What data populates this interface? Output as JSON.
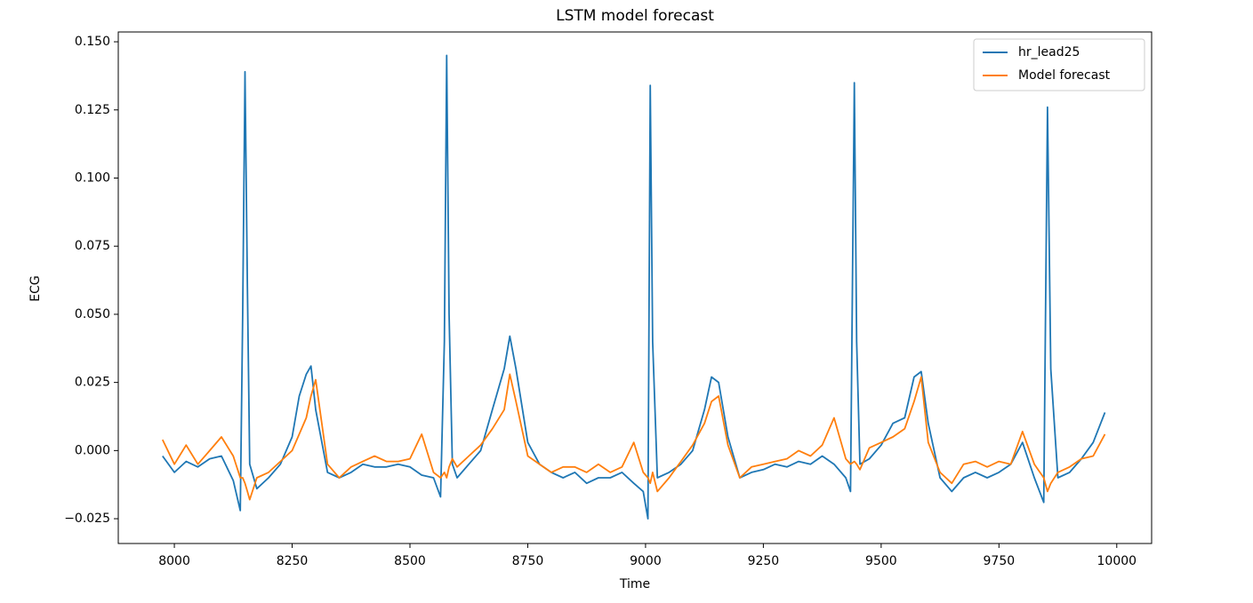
{
  "chart_data": {
    "type": "line",
    "title": "LSTM model forecast",
    "x_label": "Time",
    "y_label": "ECG",
    "x": [
      7975,
      8000,
      8025,
      8050,
      8075,
      8100,
      8125,
      8140,
      8145,
      8150,
      8155,
      8160,
      8175,
      8200,
      8225,
      8250,
      8265,
      8280,
      8290,
      8300,
      8325,
      8350,
      8375,
      8400,
      8425,
      8450,
      8475,
      8500,
      8525,
      8550,
      8565,
      8573,
      8578,
      8583,
      8590,
      8600,
      8625,
      8650,
      8675,
      8700,
      8712,
      8725,
      8750,
      8775,
      8800,
      8825,
      8850,
      8875,
      8900,
      8925,
      8950,
      8975,
      8995,
      9005,
      9010,
      9015,
      9025,
      9050,
      9075,
      9100,
      9125,
      9140,
      9155,
      9175,
      9200,
      9225,
      9250,
      9275,
      9300,
      9325,
      9350,
      9375,
      9400,
      9425,
      9435,
      9443,
      9448,
      9455,
      9475,
      9500,
      9525,
      9550,
      9570,
      9585,
      9600,
      9625,
      9650,
      9675,
      9700,
      9725,
      9750,
      9775,
      9800,
      9825,
      9845,
      9853,
      9860,
      9875,
      9900,
      9925,
      9950,
      9975
    ],
    "series": [
      {
        "name": "hr_lead25",
        "color": "#1f77b4",
        "values": [
          -0.002,
          -0.008,
          -0.004,
          -0.006,
          -0.003,
          -0.002,
          -0.011,
          -0.022,
          0.05,
          0.139,
          0.06,
          -0.005,
          -0.014,
          -0.01,
          -0.005,
          0.005,
          0.02,
          0.028,
          0.031,
          0.015,
          -0.008,
          -0.01,
          -0.008,
          -0.005,
          -0.006,
          -0.006,
          -0.005,
          -0.006,
          -0.009,
          -0.01,
          -0.017,
          0.04,
          0.145,
          0.05,
          -0.005,
          -0.01,
          -0.005,
          0.0,
          0.015,
          0.03,
          0.042,
          0.03,
          0.003,
          -0.005,
          -0.008,
          -0.01,
          -0.008,
          -0.012,
          -0.01,
          -0.01,
          -0.008,
          -0.012,
          -0.015,
          -0.025,
          0.134,
          0.04,
          -0.01,
          -0.008,
          -0.005,
          0.0,
          0.015,
          0.027,
          0.025,
          0.005,
          -0.01,
          -0.008,
          -0.007,
          -0.005,
          -0.006,
          -0.004,
          -0.005,
          -0.002,
          -0.005,
          -0.01,
          -0.015,
          0.135,
          0.04,
          -0.005,
          -0.003,
          0.002,
          0.01,
          0.012,
          0.027,
          0.029,
          0.01,
          -0.01,
          -0.015,
          -0.01,
          -0.008,
          -0.01,
          -0.008,
          -0.005,
          0.003,
          -0.01,
          -0.019,
          0.126,
          0.03,
          -0.01,
          -0.008,
          -0.003,
          0.003,
          0.014
        ]
      },
      {
        "name": "Model forecast",
        "color": "#ff7f0e",
        "values": [
          0.004,
          -0.005,
          0.002,
          -0.005,
          0.0,
          0.005,
          -0.002,
          -0.01,
          -0.01,
          -0.012,
          -0.015,
          -0.018,
          -0.01,
          -0.008,
          -0.004,
          0.0,
          0.006,
          0.012,
          0.02,
          0.026,
          -0.005,
          -0.01,
          -0.006,
          -0.004,
          -0.002,
          -0.004,
          -0.004,
          -0.003,
          0.006,
          -0.008,
          -0.01,
          -0.008,
          -0.01,
          -0.006,
          -0.003,
          -0.006,
          -0.002,
          0.002,
          0.008,
          0.015,
          0.028,
          0.018,
          -0.002,
          -0.005,
          -0.008,
          -0.006,
          -0.006,
          -0.008,
          -0.005,
          -0.008,
          -0.006,
          0.003,
          -0.008,
          -0.01,
          -0.012,
          -0.008,
          -0.015,
          -0.01,
          -0.004,
          0.002,
          0.01,
          0.018,
          0.02,
          0.002,
          -0.01,
          -0.006,
          -0.005,
          -0.004,
          -0.003,
          0.0,
          -0.002,
          0.002,
          0.012,
          -0.003,
          -0.005,
          -0.004,
          -0.005,
          -0.007,
          0.001,
          0.003,
          0.005,
          0.008,
          0.018,
          0.027,
          0.003,
          -0.008,
          -0.012,
          -0.005,
          -0.004,
          -0.006,
          -0.004,
          -0.005,
          0.007,
          -0.005,
          -0.01,
          -0.015,
          -0.012,
          -0.008,
          -0.006,
          -0.003,
          -0.002,
          0.006
        ]
      }
    ],
    "xlim": [
      7881,
      10074
    ],
    "ylim": [
      -0.0341,
      0.1536
    ],
    "xticks": [
      8000,
      8250,
      8500,
      8750,
      9000,
      9250,
      9500,
      9750,
      10000
    ],
    "yticks": [
      {
        "value": -0.025,
        "label": "−0.025"
      },
      {
        "value": 0,
        "label": "0.000"
      },
      0.025,
      {
        "value": 0.05,
        "label": "0.050"
      },
      0.075,
      {
        "value": 0.1,
        "label": "0.100"
      },
      0.125,
      {
        "value": 0.15,
        "label": "0.150"
      }
    ],
    "legend": "upper right"
  }
}
